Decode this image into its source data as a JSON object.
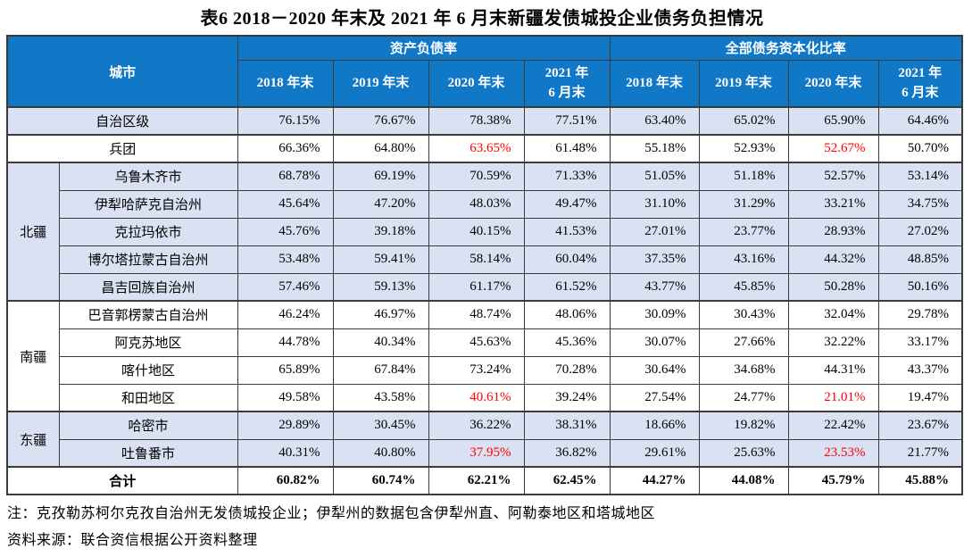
{
  "title": {
    "prefix": "表6 2018－2020 年末及 2021 年 6 月末",
    "emphasis": "新疆发债城投企业债务负担情况"
  },
  "colors": {
    "header_blue": "#1178C8",
    "row_shade": "#D9E1F2",
    "highlight_red": "#FF0000",
    "border": "#3b3b3b"
  },
  "table": {
    "city_header": "城市",
    "group_headers": [
      "资产负债率",
      "全部债务资本化比率"
    ],
    "year_headers": [
      "2018 年末",
      "2019 年末",
      "2020 年末",
      "2021 年\n6 月末",
      "2018 年末",
      "2019 年末",
      "2020 年末",
      "2021 年\n6 月末"
    ],
    "rows": [
      {
        "city": "自治区级",
        "merged": true,
        "shade": true,
        "thick_top": false,
        "values": [
          "76.15%",
          "76.67%",
          "78.38%",
          "77.51%",
          "63.40%",
          "65.02%",
          "65.90%",
          "64.46%"
        ],
        "red": []
      },
      {
        "city": "兵团",
        "merged": true,
        "shade": false,
        "thick_top": true,
        "values": [
          "66.36%",
          "64.80%",
          "63.65%",
          "61.48%",
          "55.18%",
          "52.93%",
          "52.67%",
          "50.70%"
        ],
        "red": [
          2,
          6
        ]
      },
      {
        "region": "北疆",
        "region_rows": 5,
        "city": "乌鲁木齐市",
        "shade": true,
        "thick_top": true,
        "values": [
          "68.78%",
          "69.19%",
          "70.59%",
          "71.33%",
          "51.05%",
          "51.18%",
          "52.57%",
          "53.14%"
        ],
        "red": []
      },
      {
        "city": "伊犁哈萨克自治州",
        "shade": true,
        "values": [
          "45.64%",
          "47.20%",
          "48.03%",
          "49.47%",
          "31.10%",
          "31.29%",
          "33.21%",
          "34.75%"
        ],
        "red": []
      },
      {
        "city": "克拉玛依市",
        "shade": true,
        "values": [
          "45.76%",
          "39.18%",
          "40.15%",
          "41.53%",
          "27.01%",
          "23.77%",
          "28.93%",
          "27.02%"
        ],
        "red": []
      },
      {
        "city": "博尔塔拉蒙古自治州",
        "shade": true,
        "values": [
          "53.48%",
          "59.41%",
          "58.14%",
          "60.04%",
          "37.35%",
          "43.16%",
          "44.32%",
          "48.85%"
        ],
        "red": []
      },
      {
        "city": "昌吉回族自治州",
        "shade": true,
        "values": [
          "57.46%",
          "59.13%",
          "61.17%",
          "61.52%",
          "43.77%",
          "45.85%",
          "50.28%",
          "50.16%"
        ],
        "red": []
      },
      {
        "region": "南疆",
        "region_rows": 4,
        "city": "巴音郭楞蒙古自治州",
        "shade": false,
        "thick_top": true,
        "values": [
          "46.24%",
          "46.97%",
          "48.74%",
          "48.06%",
          "30.09%",
          "30.43%",
          "32.04%",
          "29.78%"
        ],
        "red": []
      },
      {
        "city": "阿克苏地区",
        "shade": false,
        "values": [
          "44.78%",
          "40.34%",
          "45.63%",
          "45.36%",
          "30.07%",
          "27.66%",
          "32.22%",
          "33.17%"
        ],
        "red": []
      },
      {
        "city": "喀什地区",
        "shade": false,
        "values": [
          "65.89%",
          "67.84%",
          "73.24%",
          "70.28%",
          "30.64%",
          "34.68%",
          "44.31%",
          "43.37%"
        ],
        "red": []
      },
      {
        "city": "和田地区",
        "shade": false,
        "values": [
          "49.58%",
          "43.58%",
          "40.61%",
          "39.24%",
          "27.54%",
          "24.77%",
          "21.01%",
          "19.47%"
        ],
        "red": [
          2,
          6
        ]
      },
      {
        "region": "东疆",
        "region_rows": 2,
        "city": "哈密市",
        "shade": true,
        "thick_top": true,
        "values": [
          "29.89%",
          "30.45%",
          "36.22%",
          "38.31%",
          "18.66%",
          "19.82%",
          "22.42%",
          "23.67%"
        ],
        "red": []
      },
      {
        "city": "吐鲁番市",
        "shade": true,
        "values": [
          "40.31%",
          "40.80%",
          "37.95%",
          "36.82%",
          "29.61%",
          "25.63%",
          "23.53%",
          "21.77%"
        ],
        "red": [
          2,
          6
        ]
      },
      {
        "city": "合计",
        "merged": true,
        "bold": true,
        "shade": false,
        "thick_top": true,
        "values": [
          "60.82%",
          "60.74%",
          "62.21%",
          "62.45%",
          "44.27%",
          "44.08%",
          "45.79%",
          "45.88%"
        ],
        "red": []
      }
    ]
  },
  "notes": [
    "注：克孜勒苏柯尔克孜自治州无发债城投企业；伊犁州的数据包含伊犁州直、阿勒泰地区和塔城地区",
    "资料来源：联合资信根据公开资料整理"
  ]
}
